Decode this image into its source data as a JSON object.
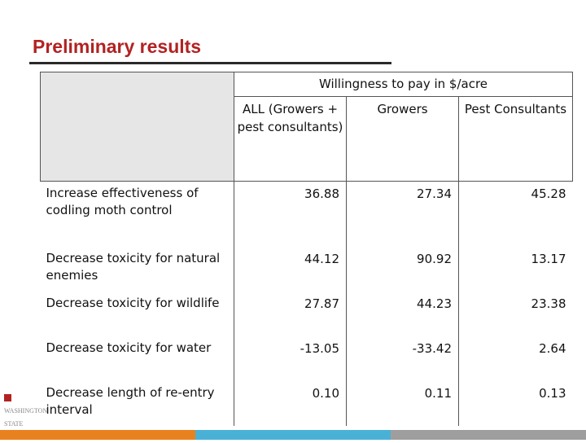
{
  "title": "Preliminary results",
  "table": {
    "group_header": "Willingness to pay in $/acre",
    "columns": [
      "ALL (Growers + pest consultants)",
      "Growers",
      "Pest Consultants"
    ],
    "rows": [
      {
        "label": "Increase effectiveness of codling moth control",
        "values": [
          "36.88",
          "27.34",
          "45.28"
        ]
      },
      {
        "label": "Decrease toxicity for natural enemies",
        "values": [
          "44.12",
          "90.92",
          "13.17"
        ]
      },
      {
        "label": "Decrease toxicity for wildlife",
        "values": [
          "27.87",
          "44.23",
          "23.38"
        ]
      },
      {
        "label": "Decrease toxicity for water",
        "values": [
          "-13.05",
          "-33.42",
          "2.64"
        ]
      },
      {
        "label": "Decrease length of re-entry interval",
        "values": [
          "0.10",
          "0.11",
          "0.13"
        ]
      }
    ]
  },
  "logo": {
    "text": "WASHINGTON STATE UNIVERSITY"
  },
  "colors": {
    "title": "#b22222",
    "bar_orange": "#e8821e",
    "bar_blue": "#4ab1d6",
    "bar_gray": "#9e9e9e"
  }
}
